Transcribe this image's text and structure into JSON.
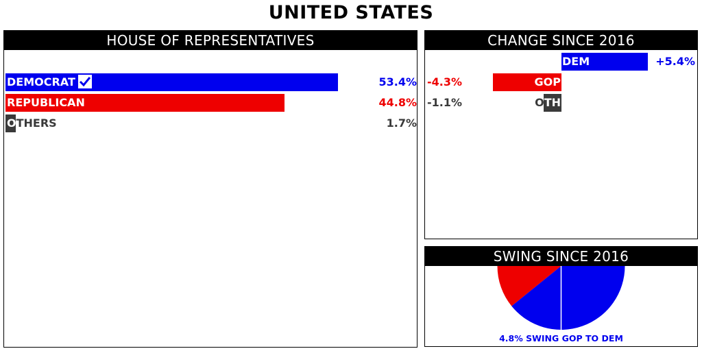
{
  "title": "UNITED STATES",
  "colors": {
    "dem": "#0000ee",
    "gop": "#ee0000",
    "oth": "#3a3a3a"
  },
  "chart_data": [
    {
      "type": "bar",
      "title": "HOUSE OF REPRESENTATIVES",
      "categories": [
        "DEMOCRAT",
        "REPUBLICAN",
        "OTHERS"
      ],
      "values": [
        53.4,
        44.8,
        1.7
      ],
      "value_labels": [
        "53.4%",
        "44.8%",
        "1.7%"
      ],
      "winner": "DEMOCRAT",
      "winner_icon": "checkmark-icon",
      "xlim": [
        0,
        66
      ]
    },
    {
      "type": "bar",
      "title": "CHANGE SINCE 2016",
      "categories": [
        "DEM",
        "GOP",
        "OTH"
      ],
      "values": [
        5.4,
        -4.3,
        -1.1
      ],
      "value_labels": [
        "+5.4%",
        "-4.3%",
        "-1.1%"
      ],
      "xlim": [
        -8.5,
        8.5
      ]
    },
    {
      "type": "pie",
      "title": "SWING SINCE 2016",
      "swing_value": 4.8,
      "direction": "GOP TO DEM",
      "caption": "4.8% SWING GOP TO DEM"
    }
  ]
}
